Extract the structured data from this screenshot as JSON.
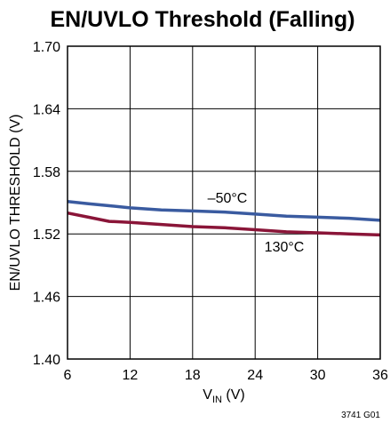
{
  "chart_data": {
    "type": "line",
    "title": "EN/UVLO Threshold (Falling)",
    "xlabel_main": "V",
    "xlabel_sub": "IN",
    "xlabel_unit": " (V)",
    "ylabel": "EN/UVLO THRESHOLD (V)",
    "xlim": [
      6,
      36
    ],
    "ylim": [
      1.4,
      1.7
    ],
    "x_ticks": [
      "6",
      "12",
      "18",
      "24",
      "30",
      "36"
    ],
    "x_tick_values": [
      6,
      12,
      18,
      24,
      30,
      36
    ],
    "y_ticks": [
      "1.70",
      "1.64",
      "1.58",
      "1.52",
      "1.46",
      "1.40"
    ],
    "y_tick_values": [
      1.7,
      1.64,
      1.58,
      1.52,
      1.46,
      1.4
    ],
    "grid": true,
    "series": [
      {
        "name": "–50°C",
        "color": "#3a5ba0",
        "x": [
          6,
          8,
          10,
          12,
          15,
          18,
          21,
          24,
          27,
          30,
          33,
          36
        ],
        "y": [
          1.551,
          1.549,
          1.547,
          1.545,
          1.543,
          1.542,
          1.541,
          1.539,
          1.537,
          1.536,
          1.535,
          1.533
        ]
      },
      {
        "name": "130°C",
        "color": "#8a1538",
        "x": [
          6,
          8,
          10,
          12,
          15,
          18,
          21,
          24,
          27,
          30,
          33,
          36
        ],
        "y": [
          1.54,
          1.536,
          1.532,
          1.531,
          1.529,
          1.527,
          1.526,
          1.524,
          1.522,
          1.521,
          1.52,
          1.519
        ]
      }
    ]
  },
  "figure_code": "3741 G01"
}
